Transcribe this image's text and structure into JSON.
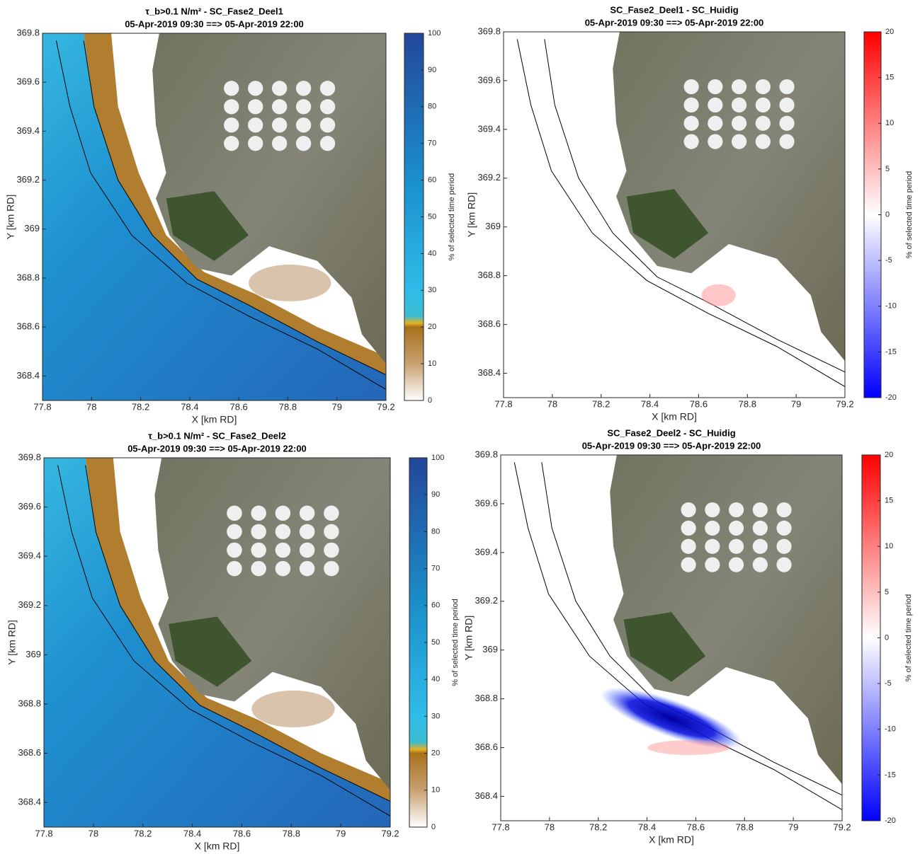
{
  "chart_data": [
    {
      "type": "map",
      "title": "τ_b>0.1 N/m² - SC_Fase2_Deel1",
      "subtitle": "05-Apr-2019 09:30 ==> 05-Apr-2019 22:00",
      "xlabel": "X [km RD]",
      "ylabel": "Y [km RD]",
      "colorbar_label": "% of selected time period",
      "xlim": [
        77.8,
        79.2
      ],
      "ylim": [
        368.3,
        369.8
      ],
      "xticks": [
        77.8,
        78,
        78.2,
        78.4,
        78.6,
        78.8,
        79,
        79.2
      ],
      "yticks": [
        368.4,
        368.6,
        368.8,
        369,
        369.2,
        369.4,
        369.6,
        369.8
      ],
      "clim": [
        0,
        100
      ],
      "cticks": [
        0,
        10,
        20,
        30,
        40,
        50,
        60,
        70,
        80,
        90,
        100
      ]
    },
    {
      "type": "map",
      "title": "SC_Fase2_Deel1 - SC_Huidig",
      "subtitle": "05-Apr-2019 09:30 ==> 05-Apr-2019 22:00",
      "xlabel": "X [km RD]",
      "ylabel": "Y [km RD]",
      "colorbar_label": "% of selected time period",
      "xlim": [
        77.8,
        79.2
      ],
      "ylim": [
        368.3,
        369.8
      ],
      "xticks": [
        77.8,
        78,
        78.2,
        78.4,
        78.6,
        78.8,
        79,
        79.2
      ],
      "yticks": [
        368.4,
        368.6,
        368.8,
        369,
        369.2,
        369.4,
        369.6,
        369.8
      ],
      "clim": [
        -20,
        20
      ],
      "cticks": [
        -20,
        -15,
        -10,
        -5,
        0,
        5,
        10,
        15,
        20
      ]
    },
    {
      "type": "map",
      "title": "τ_b>0.1 N/m² - SC_Fase2_Deel2",
      "subtitle": "05-Apr-2019 09:30 ==> 05-Apr-2019 22:00",
      "xlabel": "X [km RD]",
      "ylabel": "Y [km RD]",
      "colorbar_label": "% of selected time period",
      "xlim": [
        77.8,
        79.2
      ],
      "ylim": [
        368.3,
        369.8
      ],
      "xticks": [
        77.8,
        78,
        78.2,
        78.4,
        78.6,
        78.8,
        79,
        79.2
      ],
      "yticks": [
        368.4,
        368.6,
        368.8,
        369,
        369.2,
        369.4,
        369.6,
        369.8
      ],
      "clim": [
        0,
        100
      ],
      "cticks": [
        0,
        10,
        20,
        30,
        40,
        50,
        60,
        70,
        80,
        90,
        100
      ]
    },
    {
      "type": "map",
      "title": "SC_Fase2_Deel2 - SC_Huidig",
      "subtitle": "05-Apr-2019 09:30 ==> 05-Apr-2019 22:00",
      "xlabel": "X [km RD]",
      "ylabel": "Y [km RD]",
      "colorbar_label": "% of selected time period",
      "xlim": [
        77.8,
        79.2
      ],
      "ylim": [
        368.3,
        369.8
      ],
      "xticks": [
        77.8,
        78,
        78.2,
        78.4,
        78.6,
        78.8,
        79,
        79.2
      ],
      "yticks": [
        368.4,
        368.6,
        368.8,
        369,
        369.2,
        369.4,
        369.6,
        369.8
      ],
      "clim": [
        -20,
        20
      ],
      "cticks": [
        -20,
        -15,
        -10,
        -5,
        0,
        5,
        10,
        15,
        20
      ]
    }
  ]
}
